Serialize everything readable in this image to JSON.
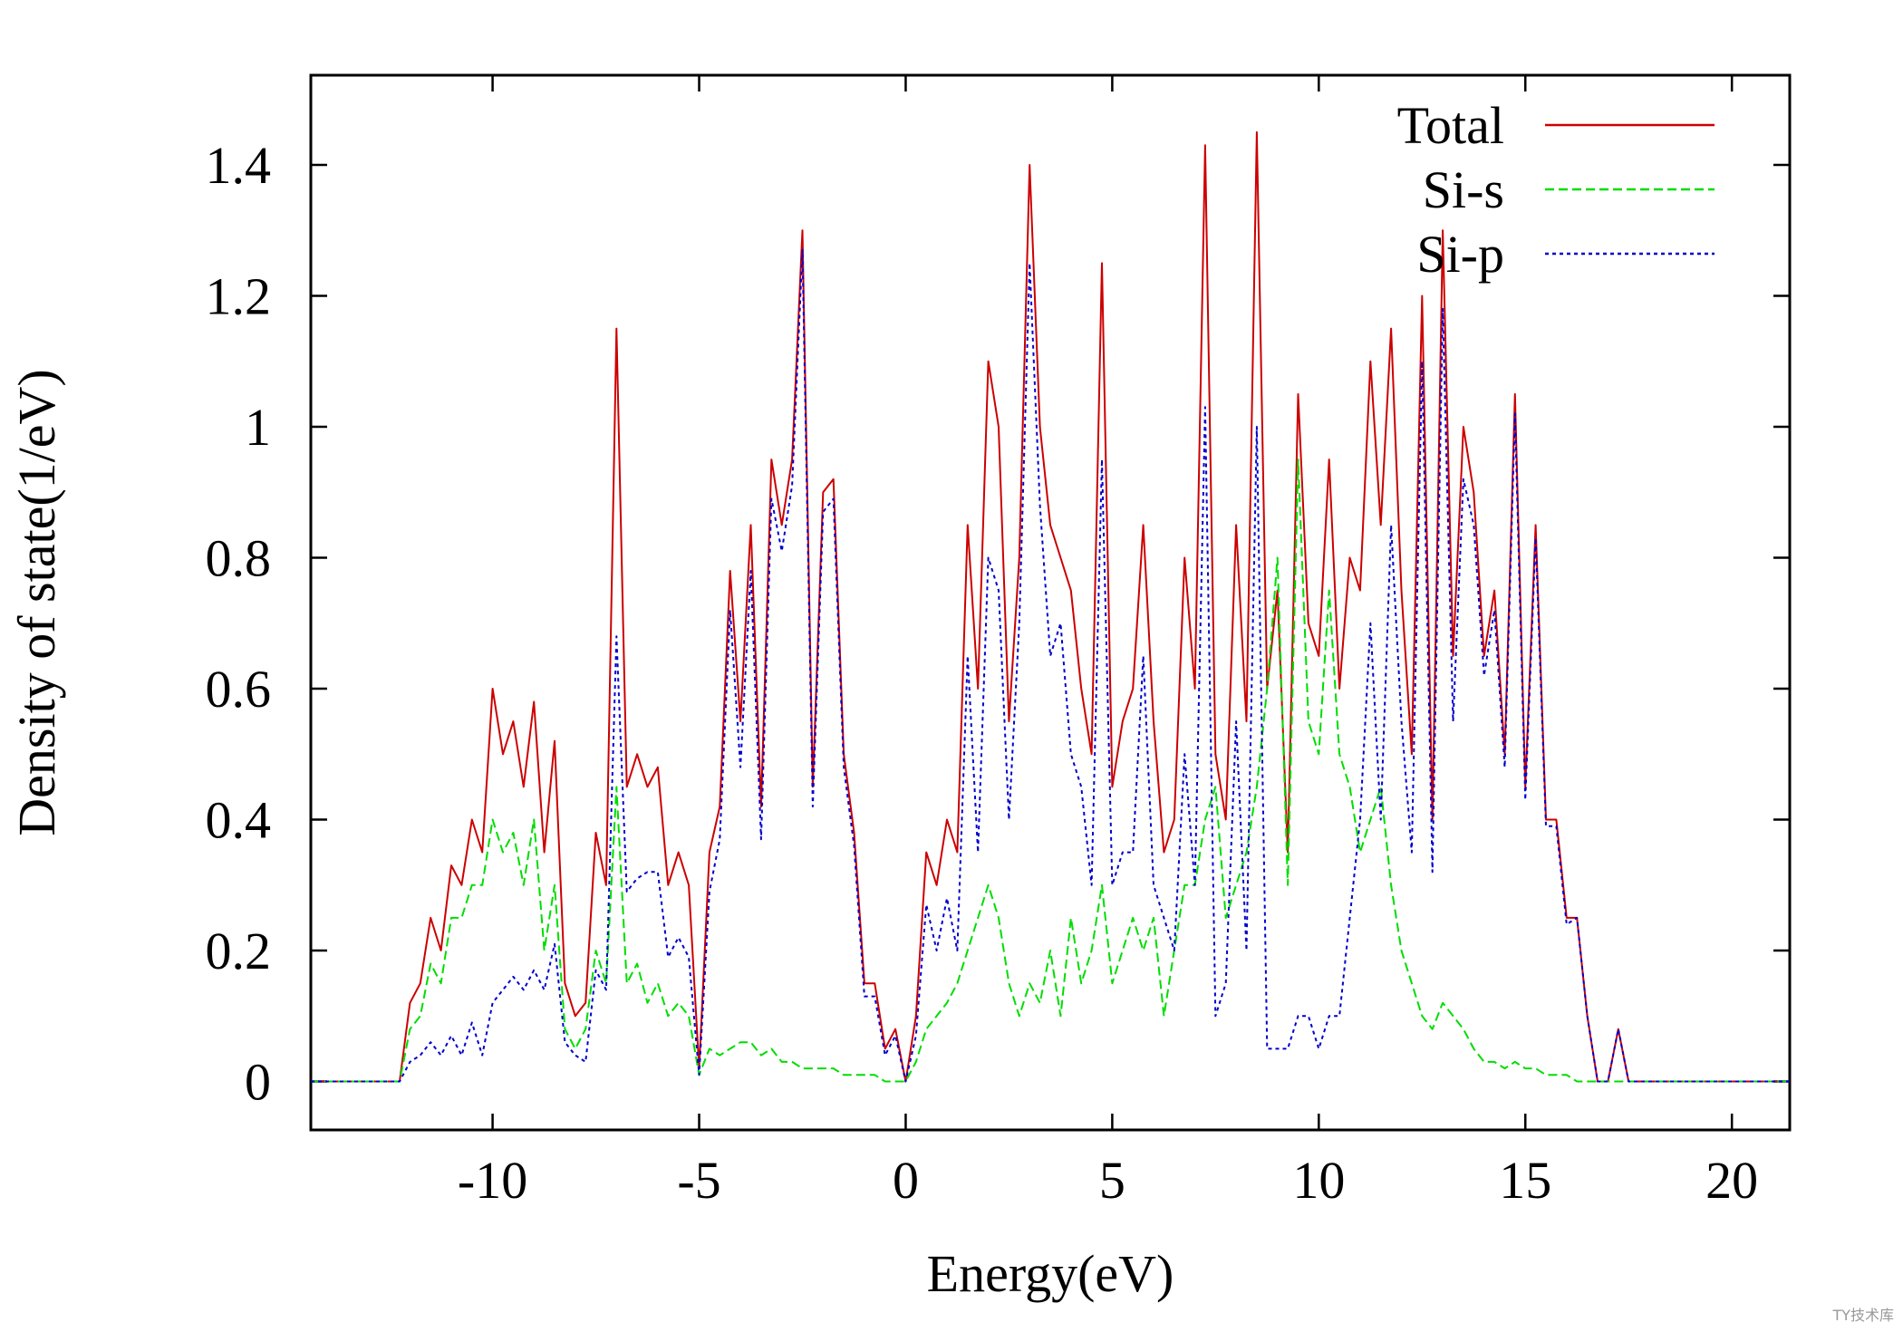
{
  "chart_data": {
    "type": "line",
    "xlabel": "Energy(eV)",
    "ylabel": "Density of state(1/eV)",
    "xlim": [
      -14.4,
      21.4
    ],
    "ylim": [
      -0.074,
      1.537
    ],
    "xticks": [
      -10,
      -5,
      0,
      5,
      10,
      15,
      20
    ],
    "yticks": [
      0,
      0.2,
      0.4,
      0.6,
      0.8,
      1,
      1.2,
      1.4
    ],
    "legend": "upper right",
    "grid": false,
    "x": [
      -14.4,
      -12.5,
      -12.25,
      -12,
      -11.75,
      -11.5,
      -11.25,
      -11,
      -10.75,
      -10.5,
      -10.25,
      -10,
      -9.75,
      -9.5,
      -9.25,
      -9,
      -8.75,
      -8.5,
      -8.25,
      -8,
      -7.75,
      -7.5,
      -7.25,
      -7,
      -6.75,
      -6.5,
      -6.25,
      -6,
      -5.75,
      -5.5,
      -5.25,
      -5,
      -4.75,
      -4.5,
      -4.25,
      -4,
      -3.75,
      -3.5,
      -3.25,
      -3,
      -2.75,
      -2.5,
      -2.25,
      -2,
      -1.75,
      -1.5,
      -1.25,
      -1,
      -0.75,
      -0.5,
      -0.25,
      0,
      0.25,
      0.5,
      0.75,
      1,
      1.25,
      1.5,
      1.75,
      2,
      2.25,
      2.5,
      2.75,
      3,
      3.25,
      3.5,
      3.75,
      4,
      4.25,
      4.5,
      4.75,
      5,
      5.25,
      5.5,
      5.75,
      6,
      6.25,
      6.5,
      6.75,
      7,
      7.25,
      7.5,
      7.75,
      8,
      8.25,
      8.5,
      8.75,
      9,
      9.25,
      9.5,
      9.75,
      10,
      10.25,
      10.5,
      10.75,
      11,
      11.25,
      11.5,
      11.75,
      12,
      12.25,
      12.5,
      12.75,
      13,
      13.25,
      13.5,
      13.75,
      14,
      14.25,
      14.5,
      14.75,
      15,
      15.25,
      15.5,
      15.75,
      16,
      16.25,
      16.5,
      16.75,
      17,
      17.25,
      17.5,
      21.4
    ],
    "series": [
      {
        "name": "Total",
        "color": "#cc0000",
        "dash": "solid",
        "values": [
          0,
          0,
          0,
          0.12,
          0.15,
          0.25,
          0.2,
          0.33,
          0.3,
          0.4,
          0.35,
          0.6,
          0.5,
          0.55,
          0.45,
          0.58,
          0.35,
          0.52,
          0.15,
          0.1,
          0.12,
          0.38,
          0.3,
          1.15,
          0.45,
          0.5,
          0.45,
          0.48,
          0.3,
          0.35,
          0.3,
          0.02,
          0.35,
          0.42,
          0.78,
          0.55,
          0.85,
          0.42,
          0.95,
          0.85,
          0.95,
          1.3,
          0.45,
          0.9,
          0.92,
          0.5,
          0.38,
          0.15,
          0.15,
          0.05,
          0.08,
          0,
          0.1,
          0.35,
          0.3,
          0.4,
          0.35,
          0.85,
          0.6,
          1.1,
          1.0,
          0.55,
          0.8,
          1.4,
          1.0,
          0.85,
          0.8,
          0.75,
          0.6,
          0.5,
          1.25,
          0.45,
          0.55,
          0.6,
          0.85,
          0.55,
          0.35,
          0.4,
          0.8,
          0.6,
          1.43,
          0.5,
          0.4,
          0.85,
          0.55,
          1.45,
          0.6,
          0.75,
          0.35,
          1.05,
          0.7,
          0.65,
          0.95,
          0.6,
          0.8,
          0.75,
          1.1,
          0.85,
          1.15,
          0.75,
          0.5,
          1.2,
          0.4,
          1.3,
          0.65,
          1.0,
          0.9,
          0.65,
          0.75,
          0.5,
          1.05,
          0.45,
          0.85,
          0.4,
          0.4,
          0.25,
          0.25,
          0.1,
          0,
          0,
          0.08,
          0,
          0
        ]
      },
      {
        "name": "Si-s",
        "color": "#00dd00",
        "dash": "dashed",
        "values": [
          0,
          0,
          0,
          0.08,
          0.1,
          0.18,
          0.15,
          0.25,
          0.25,
          0.3,
          0.3,
          0.4,
          0.35,
          0.38,
          0.3,
          0.4,
          0.2,
          0.3,
          0.08,
          0.05,
          0.08,
          0.2,
          0.15,
          0.45,
          0.15,
          0.18,
          0.12,
          0.15,
          0.1,
          0.12,
          0.1,
          0.01,
          0.05,
          0.04,
          0.05,
          0.06,
          0.06,
          0.04,
          0.05,
          0.03,
          0.03,
          0.02,
          0.02,
          0.02,
          0.02,
          0.01,
          0.01,
          0.01,
          0.01,
          0,
          0,
          0,
          0.03,
          0.08,
          0.1,
          0.12,
          0.15,
          0.2,
          0.25,
          0.3,
          0.25,
          0.15,
          0.1,
          0.15,
          0.12,
          0.2,
          0.1,
          0.25,
          0.15,
          0.2,
          0.3,
          0.15,
          0.2,
          0.25,
          0.2,
          0.25,
          0.1,
          0.2,
          0.3,
          0.3,
          0.4,
          0.45,
          0.25,
          0.3,
          0.35,
          0.45,
          0.6,
          0.8,
          0.3,
          0.95,
          0.55,
          0.5,
          0.75,
          0.5,
          0.45,
          0.35,
          0.4,
          0.45,
          0.3,
          0.2,
          0.15,
          0.1,
          0.08,
          0.12,
          0.1,
          0.08,
          0.05,
          0.03,
          0.03,
          0.02,
          0.03,
          0.02,
          0.02,
          0.01,
          0.01,
          0.01,
          0,
          0,
          0,
          0,
          0,
          0,
          0
        ]
      },
      {
        "name": "Si-p",
        "color": "#0000cc",
        "dash": "dotted",
        "values": [
          0,
          0,
          0,
          0.03,
          0.04,
          0.06,
          0.04,
          0.07,
          0.04,
          0.09,
          0.04,
          0.12,
          0.14,
          0.16,
          0.14,
          0.17,
          0.14,
          0.21,
          0.06,
          0.04,
          0.03,
          0.17,
          0.14,
          0.68,
          0.29,
          0.31,
          0.32,
          0.32,
          0.19,
          0.22,
          0.19,
          0.01,
          0.29,
          0.37,
          0.72,
          0.48,
          0.78,
          0.37,
          0.89,
          0.81,
          0.91,
          1.27,
          0.42,
          0.87,
          0.89,
          0.48,
          0.36,
          0.13,
          0.13,
          0.04,
          0.07,
          0,
          0.07,
          0.27,
          0.2,
          0.28,
          0.2,
          0.65,
          0.35,
          0.8,
          0.75,
          0.4,
          0.7,
          1.25,
          0.88,
          0.65,
          0.7,
          0.5,
          0.45,
          0.3,
          0.95,
          0.3,
          0.35,
          0.35,
          0.65,
          0.3,
          0.25,
          0.2,
          0.5,
          0.3,
          1.03,
          0.1,
          0.15,
          0.55,
          0.2,
          1.0,
          0.05,
          0.05,
          0.05,
          0.1,
          0.1,
          0.05,
          0.1,
          0.1,
          0.25,
          0.4,
          0.7,
          0.4,
          0.85,
          0.55,
          0.35,
          1.1,
          0.32,
          1.18,
          0.55,
          0.92,
          0.85,
          0.62,
          0.72,
          0.48,
          1.02,
          0.43,
          0.83,
          0.39,
          0.39,
          0.24,
          0.25,
          0.1,
          0,
          0,
          0.08,
          0,
          0
        ]
      }
    ]
  },
  "watermark": "TY技术库"
}
